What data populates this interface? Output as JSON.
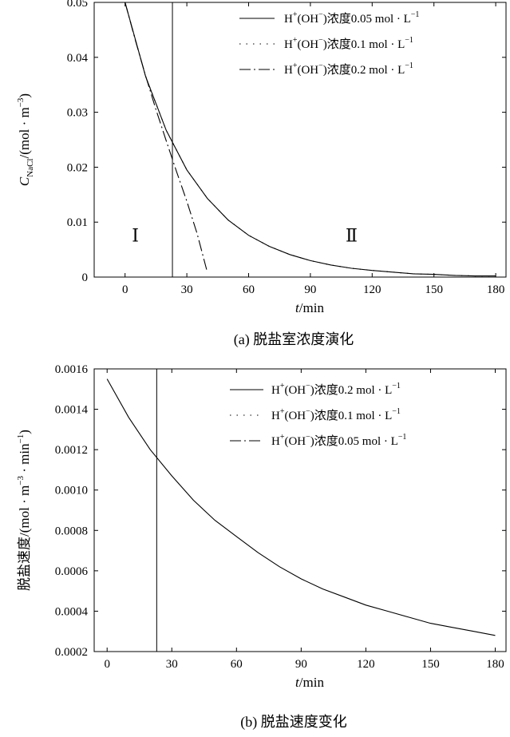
{
  "chart_data": [
    {
      "type": "line",
      "panel": "a",
      "caption": "(a) 脱盐室浓度演化",
      "xlabel_var": "t",
      "xlabel_unit": "/min",
      "ylabel_var": "C",
      "ylabel_sub": "NaCl",
      "ylabel_unit": "/(mol · m",
      "ylabel_exp": "−3",
      "ylabel_close": ")",
      "xlim": [
        -15,
        185
      ],
      "ylim": [
        0,
        0.05
      ],
      "xticks": [
        0,
        30,
        60,
        90,
        120,
        150,
        180
      ],
      "xtick_labels": [
        "0",
        "30",
        "60",
        "90",
        "120",
        "150",
        "180"
      ],
      "yticks": [
        0,
        0.01,
        0.02,
        0.03,
        0.04,
        0.05
      ],
      "ytick_labels": [
        "0",
        "0.01",
        "0.02",
        "0.03",
        "0.04",
        "0.05"
      ],
      "vline_x": 23,
      "region_labels": [
        {
          "text": "Ⅰ",
          "x": 5,
          "y": 0.0065
        },
        {
          "text": "Ⅱ",
          "x": 110,
          "y": 0.0065
        }
      ],
      "legend": [
        {
          "prefix": "H",
          "sup1": "+",
          "mid": "(OH",
          "sup2": "−",
          "suffix": ")浓度0.05 mol · L",
          "sup3": "−1",
          "dash": "solid"
        },
        {
          "prefix": "H",
          "sup1": "+",
          "mid": "(OH",
          "sup2": "−",
          "suffix": ")浓度0.1 mol · L",
          "sup3": "−1",
          "dash": "dotted"
        },
        {
          "prefix": "H",
          "sup1": "+",
          "mid": "(OH",
          "sup2": "−",
          "suffix": ")浓度0.2 mol · L",
          "sup3": "−1",
          "dash": "dashdot"
        }
      ],
      "series": [
        {
          "dash": "solid",
          "x": [
            0,
            10,
            20,
            30,
            40,
            50,
            60,
            70,
            80,
            90,
            100,
            110,
            120,
            130,
            140,
            150,
            160,
            170,
            180
          ],
          "y": [
            0.05,
            0.0365,
            0.0267,
            0.0195,
            0.0143,
            0.0104,
            0.0076,
            0.0056,
            0.0041,
            0.003,
            0.0022,
            0.0016,
            0.0012,
            0.0009,
            0.0006,
            0.0005,
            0.0003,
            0.0002,
            0.0002
          ]
        },
        {
          "dash": "dotted",
          "x": [
            0,
            10,
            20,
            30,
            40,
            50,
            60,
            70,
            80,
            90,
            100,
            110,
            120,
            130,
            140,
            150,
            160,
            170,
            180
          ],
          "y": [
            0.05,
            0.0365,
            0.0267,
            0.0195,
            0.0143,
            0.0104,
            0.0076,
            0.0056,
            0.0041,
            0.003,
            0.0022,
            0.0016,
            0.0012,
            0.0009,
            0.0006,
            0.0005,
            0.0003,
            0.0002,
            0.0002
          ]
        },
        {
          "dash": "dashdot",
          "x": [
            0,
            5,
            10,
            15,
            20,
            25,
            30,
            35,
            40
          ],
          "y": [
            0.05,
            0.0431,
            0.0366,
            0.0305,
            0.0248,
            0.0192,
            0.0138,
            0.0079,
            0.0008
          ]
        }
      ]
    },
    {
      "type": "line",
      "panel": "b",
      "caption": "(b) 脱盐速度变化",
      "xlabel_var": "t",
      "xlabel_unit": "/min",
      "ylabel_text": "脱盐速度/(mol · m",
      "ylabel_exp1": "−3",
      "ylabel_mid": " · min",
      "ylabel_exp2": "−1",
      "ylabel_close": ")",
      "xlim": [
        -6,
        185
      ],
      "ylim": [
        0.0002,
        0.0016
      ],
      "xticks": [
        0,
        30,
        60,
        90,
        120,
        150,
        180
      ],
      "xtick_labels": [
        "0",
        "30",
        "60",
        "90",
        "120",
        "150",
        "180"
      ],
      "yticks": [
        0.0002,
        0.0004,
        0.0006,
        0.0008,
        0.001,
        0.0012,
        0.0014,
        0.0016
      ],
      "ytick_labels": [
        "0.0002",
        "0.0004",
        "0.0006",
        "0.0008",
        "0.0010",
        "0.0012",
        "0.0014",
        "0.0016"
      ],
      "vline_x": 23,
      "legend": [
        {
          "prefix": "H",
          "sup1": "+",
          "mid": "(OH",
          "sup2": "−",
          "suffix": ")浓度0.2 mol · L",
          "sup3": "−1",
          "dash": "solid"
        },
        {
          "prefix": "H",
          "sup1": "+",
          "mid": "(OH",
          "sup2": "−",
          "suffix": ")浓度0.1 mol · L",
          "sup3": "−1",
          "dash": "dotted"
        },
        {
          "prefix": "H",
          "sup1": "+",
          "mid": "(OH",
          "sup2": "−",
          "suffix": ")浓度0.05 mol · L",
          "sup3": "−1",
          "dash": "dashdot"
        }
      ],
      "series": [
        {
          "dash": "solid",
          "x": [
            0,
            10,
            20,
            30,
            40,
            50,
            60,
            70,
            80,
            90,
            100,
            110,
            120,
            130,
            140,
            150,
            160,
            170,
            180
          ],
          "y": [
            0.00155,
            0.00136,
            0.0012,
            0.00107,
            0.00095,
            0.00085,
            0.00077,
            0.00069,
            0.00062,
            0.00056,
            0.00051,
            0.00047,
            0.00043,
            0.0004,
            0.00037,
            0.00034,
            0.00032,
            0.0003,
            0.00028
          ]
        }
      ]
    }
  ]
}
